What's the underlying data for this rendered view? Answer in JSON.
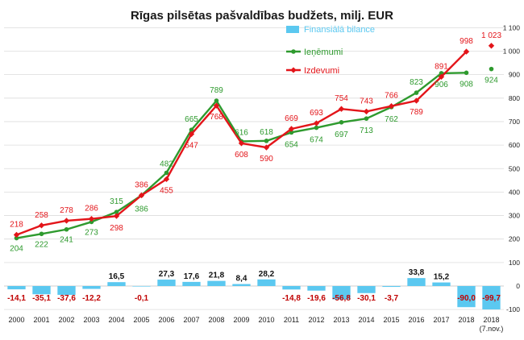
{
  "chart_data": {
    "type": "line",
    "title": "Rīgas pilsētas pašvaldības budžets, milj. EUR",
    "categories": [
      "2000",
      "2001",
      "2002",
      "2003",
      "2004",
      "2005",
      "2006",
      "2007",
      "2008",
      "2009",
      "2010",
      "2011",
      "2012",
      "2013",
      "2014",
      "2015",
      "2016",
      "2017",
      "2018",
      "2018"
    ],
    "category_sublabels": [
      "",
      "",
      "",
      "",
      "",
      "",
      "",
      "",
      "",
      "",
      "",
      "",
      "",
      "",
      "",
      "",
      "",
      "",
      "",
      "(7.nov.)"
    ],
    "ylim": [
      -100,
      1100
    ],
    "yticks": [
      -100,
      0,
      100,
      200,
      300,
      400,
      500,
      600,
      700,
      800,
      900,
      1000,
      1100
    ],
    "ytick_labels": [
      "-100",
      "0",
      "100",
      "200",
      "300",
      "400",
      "500",
      "600",
      "700",
      "800",
      "900",
      "1 000",
      "1 100"
    ],
    "grid": true,
    "legend_position": "top-right",
    "colors": {
      "balance": "#5bc8f0",
      "revenue": "#2e9a2e",
      "expenditure": "#e3151a"
    },
    "series": [
      {
        "name": "Finansiālā bilance",
        "kind": "bar",
        "values": [
          -14.1,
          -35.1,
          -37.6,
          -12.2,
          16.5,
          -0.1,
          27.3,
          17.6,
          21.8,
          8.4,
          28.2,
          -14.8,
          -19.6,
          -56.8,
          -30.1,
          -3.7,
          33.8,
          15.2,
          -90.0,
          -99.7
        ],
        "labels": [
          "-14,1",
          "-35,1",
          "-37,6",
          "-12,2",
          "16,5",
          "-0,1",
          "27,3",
          "17,6",
          "21,8",
          "8,4",
          "28,2",
          "-14,8",
          "-19,6",
          "-56,8",
          "-30,1",
          "-3,7",
          "33,8",
          "15,2",
          "-90,0",
          "-99,7"
        ]
      },
      {
        "name": "Ieņēmumi",
        "kind": "line",
        "values": [
          204,
          222,
          241,
          273,
          315,
          386,
          482,
          665,
          789,
          616,
          618,
          654,
          674,
          697,
          713,
          762,
          823,
          906,
          908,
          924
        ],
        "labels": [
          "204",
          "222",
          "241",
          "273",
          "315",
          "386",
          "482",
          "665",
          "789",
          "616",
          "618",
          "654",
          "674",
          "697",
          "713",
          "762",
          "823",
          "906",
          "908",
          "924"
        ]
      },
      {
        "name": "Izdevumi",
        "kind": "line",
        "values": [
          218,
          258,
          278,
          286,
          298,
          386,
          455,
          647,
          768,
          608,
          590,
          669,
          693,
          754,
          743,
          766,
          789,
          891,
          998,
          1023
        ],
        "labels": [
          "218",
          "258",
          "278",
          "286",
          "298",
          "386",
          "455",
          "647",
          "768",
          "608",
          "590",
          "669",
          "693",
          "754",
          "743",
          "766",
          "789",
          "891",
          "998",
          "1 023"
        ]
      }
    ]
  }
}
